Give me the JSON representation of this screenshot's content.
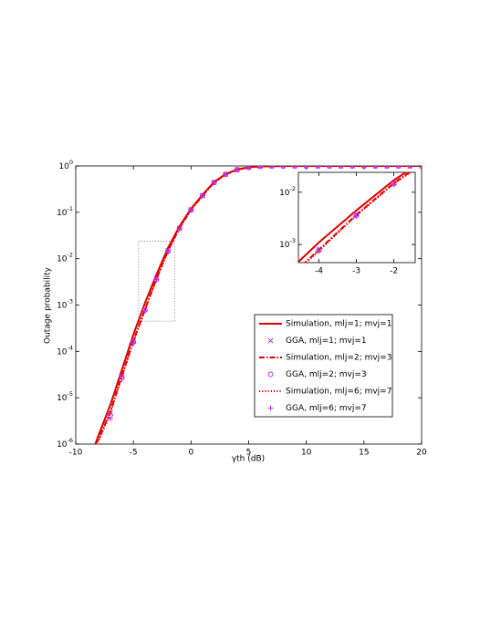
{
  "chart_data": {
    "type": "line",
    "log_y": true,
    "xlabel": "γth (dB)",
    "ylabel": "Outage probability",
    "xlim": [
      -10,
      20
    ],
    "xticks": [
      -10,
      -5,
      0,
      5,
      10,
      15,
      20
    ],
    "ylim": [
      1e-06,
      1
    ],
    "yticks": [
      {
        "value": 1e-06,
        "label": "10^-6"
      },
      {
        "value": 1e-05,
        "label": "10^-5"
      },
      {
        "value": 0.0001,
        "label": "10^-4"
      },
      {
        "value": 0.001,
        "label": "10^-3"
      },
      {
        "value": 0.01,
        "label": "10^-2"
      },
      {
        "value": 0.1,
        "label": "10^-1"
      },
      {
        "value": 1,
        "label": "10^0"
      }
    ],
    "inset": {
      "xlim": [
        -4.55,
        -1.43
      ],
      "xticks": [
        -4,
        -3,
        -2
      ],
      "ylim": [
        0.00045,
        0.024
      ],
      "yticks": [
        {
          "value": 0.001,
          "label": "10^-3"
        },
        {
          "value": 0.01,
          "label": "10^-2"
        }
      ]
    },
    "series": [
      {
        "name": "Simulation, mlj=1; mvj=1",
        "color": "#e00000",
        "style": "solid",
        "x": [
          -8.3,
          -8,
          -7,
          -6,
          -5,
          -4,
          -3,
          -2,
          -1,
          0,
          1,
          2,
          3,
          4,
          5,
          6,
          8,
          10,
          15,
          20
        ],
        "values": [
          1e-06,
          1.6e-06,
          7e-06,
          4e-05,
          0.00023,
          0.0011,
          0.0045,
          0.017,
          0.05,
          0.12,
          0.24,
          0.45,
          0.67,
          0.84,
          0.94,
          0.98,
          1,
          1,
          1,
          1
        ]
      },
      {
        "name": "GGA, mlj=1; mvj=1",
        "color": "#c030e0",
        "marker": "x",
        "x": [
          -7,
          -6,
          -5,
          -4,
          -3,
          -2,
          -1,
          0,
          1,
          2,
          3,
          4,
          5,
          6,
          7,
          8,
          9,
          10,
          11,
          12,
          13,
          14,
          15,
          16,
          17,
          18,
          19,
          20
        ],
        "values": [
          4.7e-06,
          3e-05,
          0.00017,
          0.0008,
          0.0038,
          0.015,
          0.046,
          0.114,
          0.23,
          0.44,
          0.66,
          0.83,
          0.93,
          0.98,
          1,
          1,
          1,
          1,
          1,
          1,
          1,
          1,
          1,
          1,
          1,
          1,
          1,
          1
        ]
      },
      {
        "name": "Simulation, mlj=2; mvj=3",
        "color": "#e00000",
        "style": "dashdot",
        "x": [
          -8.3,
          -8,
          -7,
          -6,
          -5,
          -4,
          -3,
          -2,
          -1,
          0,
          1,
          2,
          3,
          4,
          5,
          6,
          8,
          10,
          15,
          20
        ],
        "values": [
          1e-06,
          1.3e-06,
          5e-06,
          3e-05,
          0.00017,
          0.0008,
          0.0037,
          0.015,
          0.046,
          0.114,
          0.23,
          0.44,
          0.66,
          0.83,
          0.93,
          0.98,
          1,
          1,
          1,
          1
        ]
      },
      {
        "name": "GGA, mlj=2; mvj=3",
        "color": "#c030e0",
        "marker": "o",
        "x": [
          -7,
          -6,
          -5,
          -4,
          -3,
          -2,
          -1,
          0,
          1,
          2,
          3,
          4,
          5,
          6,
          7,
          8,
          9,
          10,
          11,
          12,
          13,
          14,
          15,
          16,
          17,
          18,
          19,
          20
        ],
        "values": [
          4.2e-06,
          2.8e-05,
          0.00016,
          0.00078,
          0.0036,
          0.0145,
          0.045,
          0.113,
          0.23,
          0.44,
          0.66,
          0.83,
          0.93,
          0.98,
          1,
          1,
          1,
          1,
          1,
          1,
          1,
          1,
          1,
          1,
          1,
          1,
          1,
          1
        ]
      },
      {
        "name": "Simulation, mlj=6; mvj=7",
        "color": "#e00000",
        "style": "dotted",
        "x": [
          -8.3,
          -8,
          -7,
          -6,
          -5,
          -4,
          -3,
          -2,
          -1,
          0,
          1,
          2,
          3,
          4,
          5,
          6,
          8,
          10,
          15,
          20
        ],
        "values": [
          1e-06,
          1.2e-06,
          4.6e-06,
          2.8e-05,
          0.00016,
          0.00076,
          0.0036,
          0.0145,
          0.045,
          0.113,
          0.23,
          0.44,
          0.66,
          0.83,
          0.93,
          0.98,
          1,
          1,
          1,
          1
        ]
      },
      {
        "name": "GGA, mlj=6; mvj=7",
        "color": "#c030e0",
        "marker": "+",
        "x": [
          -7,
          -6,
          -5,
          -4,
          -3,
          -2,
          -1,
          0,
          1,
          2,
          3,
          4,
          5,
          6,
          7,
          8,
          9,
          10,
          11,
          12,
          13,
          14,
          15,
          16,
          17,
          18,
          19,
          20
        ],
        "values": [
          3.5e-06,
          2.5e-05,
          0.00015,
          0.00075,
          0.0035,
          0.014,
          0.044,
          0.112,
          0.23,
          0.44,
          0.66,
          0.83,
          0.93,
          0.98,
          1,
          1,
          1,
          1,
          1,
          1,
          1,
          1,
          1,
          1,
          1,
          1,
          1,
          1
        ]
      }
    ]
  }
}
